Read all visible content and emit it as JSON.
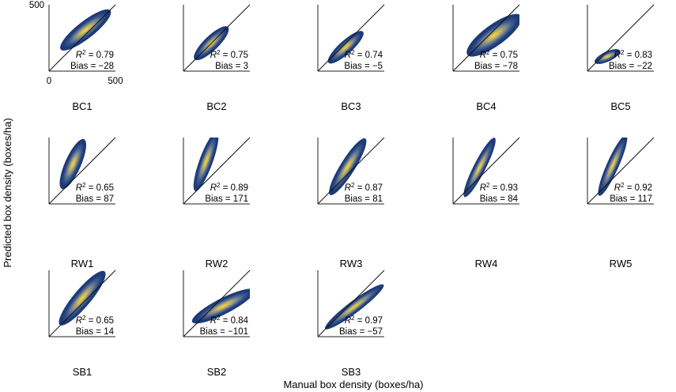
{
  "chart_data": {
    "type": "heatmap",
    "description_kind": "grid of density scatter panels, predicted vs manual box density, with 1:1 line",
    "xlabel": "Manual box density (boxes/ha)",
    "ylabel": "Predicted box density (boxes/ha)",
    "axis_range": [
      0,
      500
    ],
    "tick_labels": {
      "x": [
        "0",
        "500"
      ],
      "y": [
        "500"
      ]
    },
    "colormap": [
      "#1e3a78",
      "#3b5a8c",
      "#7f8790",
      "#c7b65a",
      "#f2d83a"
    ],
    "panels": [
      {
        "label": "BC1",
        "r2": "0.79",
        "bias": "−28"
      },
      {
        "label": "BC2",
        "r2": "0.75",
        "bias": "3"
      },
      {
        "label": "BC3",
        "r2": "0.74",
        "bias": "−5"
      },
      {
        "label": "BC4",
        "r2": "0.75",
        "bias": "−78"
      },
      {
        "label": "BC5",
        "r2": "0.83",
        "bias": "−22"
      },
      {
        "label": "RW1",
        "r2": "0.65",
        "bias": "87"
      },
      {
        "label": "RW2",
        "r2": "0.89",
        "bias": "171"
      },
      {
        "label": "RW3",
        "r2": "0.87",
        "bias": "81"
      },
      {
        "label": "RW4",
        "r2": "0.93",
        "bias": "84"
      },
      {
        "label": "RW5",
        "r2": "0.92",
        "bias": "117"
      },
      {
        "label": "SB1",
        "r2": "0.65",
        "bias": "14"
      },
      {
        "label": "SB2",
        "r2": "0.84",
        "bias": "−101"
      },
      {
        "label": "SB3",
        "r2": "0.97",
        "bias": "−57"
      }
    ]
  }
}
